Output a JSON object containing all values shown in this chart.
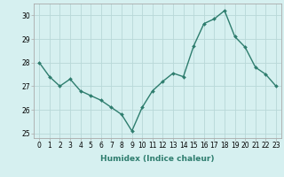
{
  "x": [
    0,
    1,
    2,
    3,
    4,
    5,
    6,
    7,
    8,
    9,
    10,
    11,
    12,
    13,
    14,
    15,
    16,
    17,
    18,
    19,
    20,
    21,
    22,
    23
  ],
  "y": [
    28.0,
    27.4,
    27.0,
    27.3,
    26.8,
    26.6,
    26.4,
    26.1,
    25.8,
    25.1,
    26.1,
    26.8,
    27.2,
    27.55,
    27.4,
    28.7,
    29.65,
    29.85,
    30.2,
    29.1,
    28.65,
    27.8,
    27.5,
    27.0
  ],
  "line_color": "#2e7d6e",
  "marker": "D",
  "marker_size": 2,
  "line_width": 1.0,
  "bg_color": "#d6f0f0",
  "grid_color": "#b8d8d8",
  "xlabel": "Humidex (Indice chaleur)",
  "xlim": [
    -0.5,
    23.5
  ],
  "ylim": [
    24.8,
    30.5
  ],
  "yticks": [
    25,
    26,
    27,
    28,
    29,
    30
  ],
  "xticks": [
    0,
    1,
    2,
    3,
    4,
    5,
    6,
    7,
    8,
    9,
    10,
    11,
    12,
    13,
    14,
    15,
    16,
    17,
    18,
    19,
    20,
    21,
    22,
    23
  ],
  "tick_fontsize": 5.5,
  "label_fontsize": 6.5
}
